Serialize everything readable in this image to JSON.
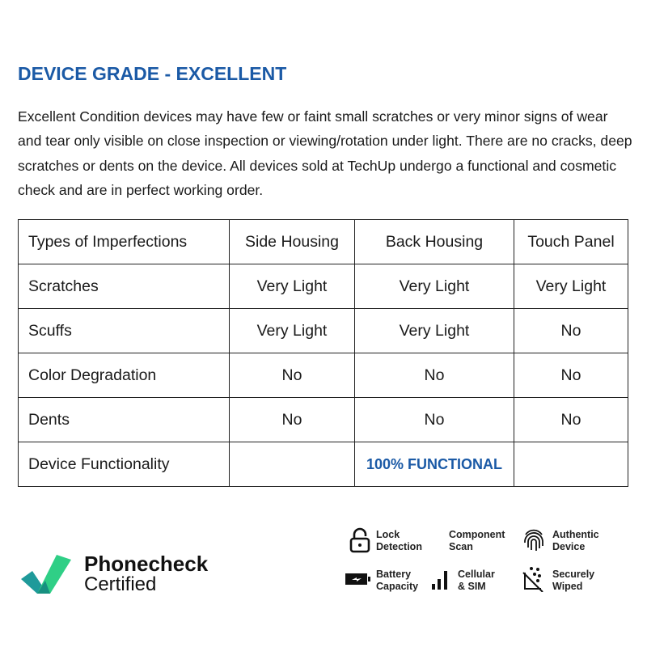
{
  "title": "DEVICE GRADE - EXCELLENT",
  "description": "Excellent Condition devices may have few or faint small scratches or very minor signs of wear and tear only visible on close inspection or viewing/rotation under light. There are no cracks, deep scratches or dents on the device. All devices sold at TechUp undergo a functional and cosmetic check and are in perfect working order.",
  "table": {
    "headers": [
      "Types of Imperfections",
      "Side Housing",
      "Back Housing",
      "Touch Panel"
    ],
    "rows": [
      [
        "Scratches",
        "Very Light",
        "Very Light",
        "Very Light"
      ],
      [
        "Scuffs",
        "Very Light",
        "Very Light",
        "No"
      ],
      [
        "Color Degradation",
        "No",
        "No",
        "No"
      ],
      [
        "Dents",
        "No",
        "No",
        "No"
      ]
    ],
    "functionality": {
      "label": "Device Functionality",
      "value": "100% FUNCTIONAL"
    }
  },
  "certification": {
    "line1": "Phonecheck",
    "line2": "Certified"
  },
  "features": [
    {
      "l1": "Lock",
      "l2": "Detection",
      "icon": "lock-icon"
    },
    {
      "l1": "Component",
      "l2": "Scan",
      "icon": ""
    },
    {
      "l1": "Authentic",
      "l2": "Device",
      "icon": "fingerprint-icon"
    },
    {
      "l1": "Battery",
      "l2": "Capacity",
      "icon": "battery-icon"
    },
    {
      "l1": "Cellular",
      "l2": "& SIM",
      "icon": "signal-icon"
    },
    {
      "l1": "Securely",
      "l2": "Wiped",
      "icon": "wiped-icon"
    }
  ],
  "colors": {
    "accent": "#1b5aa6",
    "logo_green": "#2fcf86",
    "logo_teal": "#1f9a9a"
  }
}
